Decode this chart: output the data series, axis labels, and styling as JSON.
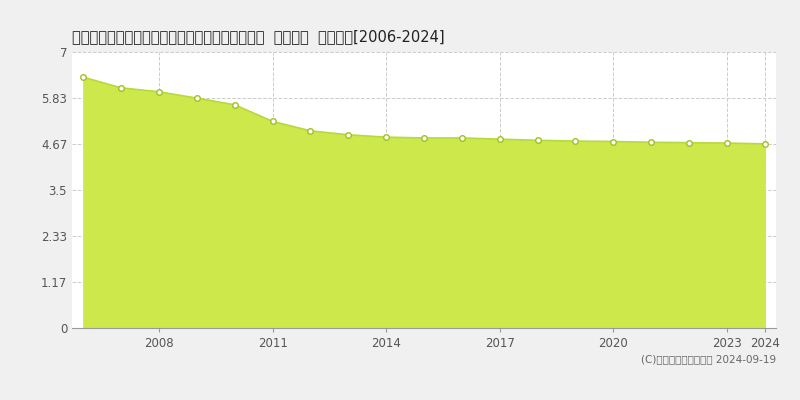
{
  "title": "福島県南会津郡南会津町田島字鎌倉崎乙２４番３  基準地価  地価推移[2006-2024]",
  "years": [
    2006,
    2007,
    2008,
    2009,
    2010,
    2011,
    2012,
    2013,
    2014,
    2015,
    2016,
    2017,
    2018,
    2019,
    2020,
    2021,
    2022,
    2023,
    2024
  ],
  "values": [
    6.36,
    6.09,
    5.99,
    5.83,
    5.66,
    5.24,
    5.0,
    4.9,
    4.84,
    4.82,
    4.82,
    4.79,
    4.76,
    4.74,
    4.73,
    4.71,
    4.7,
    4.69,
    4.67
  ],
  "yticks": [
    0,
    1.17,
    2.33,
    3.5,
    4.67,
    5.83,
    7
  ],
  "ytick_labels": [
    "0",
    "1.17",
    "2.33",
    "3.5",
    "4.67",
    "5.83",
    "7"
  ],
  "xticks": [
    2008,
    2011,
    2014,
    2017,
    2020,
    2023,
    2024
  ],
  "line_color": "#b8d840",
  "fill_color": "#cde84a",
  "fill_alpha": 1.0,
  "marker_facecolor": "white",
  "marker_edgecolor": "#a0c020",
  "plot_bg_color": "#ffffff",
  "outer_bg_color": "#f0f0f0",
  "grid_color": "#cccccc",
  "title_fontsize": 10.5,
  "copyright_text": "(C)土地価格ドットコム 2024-09-19",
  "ylim": [
    0,
    7
  ],
  "xlim_start": 2005.7,
  "xlim_end": 2024.3
}
